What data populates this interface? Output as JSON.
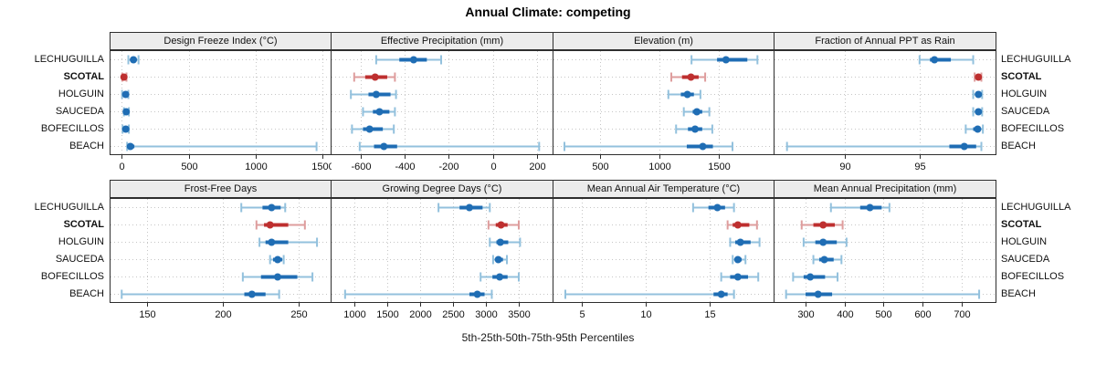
{
  "title": "Annual Climate: competing",
  "caption": "5th-25th-50th-75th-95th Percentiles",
  "sites": [
    {
      "name": "LECHUGUILLA",
      "bold": false,
      "highlight": false
    },
    {
      "name": "SCOTAL",
      "bold": true,
      "highlight": true
    },
    {
      "name": "HOLGUIN",
      "bold": false,
      "highlight": false
    },
    {
      "name": "SAUCEDA",
      "bold": false,
      "highlight": false
    },
    {
      "name": "BOFECILLOS",
      "bold": false,
      "highlight": false
    },
    {
      "name": "BEACH",
      "bold": false,
      "highlight": false
    }
  ],
  "colors": {
    "blue": "#1f6db4",
    "blue_light": "#93c1dd",
    "red": "#be2f2f",
    "red_light": "#de9d9d",
    "grid": "#c6c6c6",
    "border": "#2e2e2e",
    "strip_bg": "#ececec",
    "text": "#111111"
  },
  "chart_data": {
    "type": "dot-interval",
    "percentile_labels": [
      5,
      25,
      50,
      75,
      95
    ],
    "layout": {
      "rows": 2,
      "cols": 4,
      "grid": "dotted",
      "row_order_top_to_bottom": [
        "LECHUGUILLA",
        "SCOTAL",
        "HOLGUIN",
        "SAUCEDA",
        "BOFECILLOS",
        "BEACH"
      ]
    },
    "panels": [
      {
        "title": "Design Freeze Index (°C)",
        "row": 0,
        "col": 0,
        "xlim": [
          -90,
          1560
        ],
        "ticks": [
          0,
          500,
          1000,
          1500
        ],
        "series": [
          {
            "site": "LECHUGUILLA",
            "percentiles": [
              50,
              70,
              88,
              106,
              126
            ]
          },
          {
            "site": "SCOTAL",
            "percentiles": [
              4,
              10,
              17,
              25,
              36
            ]
          },
          {
            "site": "HOLGUIN",
            "percentiles": [
              3,
              18,
              30,
              40,
              50
            ]
          },
          {
            "site": "SAUCEDA",
            "percentiles": [
              17,
              26,
              34,
              44,
              54
            ]
          },
          {
            "site": "BOFECILLOS",
            "percentiles": [
              7,
              20,
              31,
              42,
              54
            ]
          },
          {
            "site": "BEACH",
            "percentiles": [
              41,
              55,
              65,
              95,
              1455
            ]
          }
        ]
      },
      {
        "title": "Effective Precipitation (mm)",
        "row": 0,
        "col": 1,
        "xlim": [
          -737,
          271
        ],
        "ticks": [
          -600,
          -400,
          -200,
          0,
          200
        ],
        "series": [
          {
            "site": "LECHUGUILLA",
            "percentiles": [
              -530,
              -425,
              -360,
              -300,
              -235
            ]
          },
          {
            "site": "SCOTAL",
            "percentiles": [
              -630,
              -580,
              -535,
              -480,
              -445
            ]
          },
          {
            "site": "HOLGUIN",
            "percentiles": [
              -645,
              -565,
              -530,
              -465,
              -440
            ]
          },
          {
            "site": "SAUCEDA",
            "percentiles": [
              -590,
              -545,
              -515,
              -470,
              -445
            ]
          },
          {
            "site": "BOFECILLOS",
            "percentiles": [
              -640,
              -590,
              -560,
              -500,
              -450
            ]
          },
          {
            "site": "BEACH",
            "percentiles": [
              -605,
              -540,
              -495,
              -435,
              210
            ]
          }
        ]
      },
      {
        "title": "Elevation (m)",
        "row": 0,
        "col": 2,
        "xlim": [
          100,
          1961
        ],
        "ticks": [
          500,
          1000,
          1500
        ],
        "series": [
          {
            "site": "LECHUGUILLA",
            "percentiles": [
              1270,
              1485,
              1560,
              1740,
              1825
            ]
          },
          {
            "site": "SCOTAL",
            "percentiles": [
              1100,
              1190,
              1265,
              1330,
              1385
            ]
          },
          {
            "site": "HOLGUIN",
            "percentiles": [
              1075,
              1180,
              1235,
              1290,
              1345
            ]
          },
          {
            "site": "SAUCEDA",
            "percentiles": [
              1205,
              1280,
              1315,
              1360,
              1420
            ]
          },
          {
            "site": "BOFECILLOS",
            "percentiles": [
              1140,
              1240,
              1300,
              1360,
              1445
            ]
          },
          {
            "site": "BEACH",
            "percentiles": [
              200,
              1230,
              1365,
              1450,
              1615
            ]
          }
        ]
      },
      {
        "title": "Fraction of Annual PPT as Rain",
        "row": 0,
        "col": 3,
        "xlim": [
          85.2,
          100.1
        ],
        "ticks": [
          90,
          95
        ],
        "series": [
          {
            "site": "LECHUGUILLA",
            "percentiles": [
              95.0,
              95.7,
              96.0,
              97.1,
              98.6
            ]
          },
          {
            "site": "SCOTAL",
            "percentiles": [
              98.7,
              98.85,
              98.95,
              99.05,
              99.15
            ]
          },
          {
            "site": "HOLGUIN",
            "percentiles": [
              98.6,
              98.8,
              98.95,
              99.05,
              99.2
            ]
          },
          {
            "site": "SAUCEDA",
            "percentiles": [
              98.6,
              98.8,
              98.95,
              99.05,
              99.2
            ]
          },
          {
            "site": "BOFECILLOS",
            "percentiles": [
              98.1,
              98.6,
              98.9,
              99.05,
              99.25
            ]
          },
          {
            "site": "BEACH",
            "percentiles": [
              86.1,
              97.0,
              98.0,
              98.8,
              99.15
            ]
          }
        ]
      },
      {
        "title": "Frost-Free Days",
        "row": 1,
        "col": 0,
        "xlim": [
          125,
          271
        ],
        "ticks": [
          150,
          200,
          250
        ],
        "series": [
          {
            "site": "LECHUGUILLA",
            "percentiles": [
              212,
              226,
              232,
              238,
              241
            ]
          },
          {
            "site": "SCOTAL",
            "percentiles": [
              222,
              227,
              231,
              243,
              254
            ]
          },
          {
            "site": "HOLGUIN",
            "percentiles": [
              224,
              228,
              232,
              243,
              262
            ]
          },
          {
            "site": "SAUCEDA",
            "percentiles": [
              231,
              233,
              236,
              239,
              240
            ]
          },
          {
            "site": "BOFECILLOS",
            "percentiles": [
              213,
              225,
              236,
              249,
              259
            ]
          },
          {
            "site": "BEACH",
            "percentiles": [
              133,
              214,
              219,
              228,
              237
            ]
          }
        ]
      },
      {
        "title": "Growing Degree Days (°C)",
        "row": 1,
        "col": 1,
        "xlim": [
          640,
          4014
        ],
        "ticks": [
          1000,
          1500,
          2000,
          2500,
          3000,
          3500
        ],
        "series": [
          {
            "site": "LECHUGUILLA",
            "percentiles": [
              2280,
              2600,
              2750,
              2950,
              3060
            ]
          },
          {
            "site": "SCOTAL",
            "percentiles": [
              3040,
              3150,
              3230,
              3330,
              3500
            ]
          },
          {
            "site": "HOLGUIN",
            "percentiles": [
              3060,
              3160,
              3220,
              3340,
              3520
            ]
          },
          {
            "site": "SAUCEDA",
            "percentiles": [
              3110,
              3160,
              3190,
              3260,
              3320
            ]
          },
          {
            "site": "BOFECILLOS",
            "percentiles": [
              2920,
              3100,
              3210,
              3330,
              3500
            ]
          },
          {
            "site": "BEACH",
            "percentiles": [
              860,
              2750,
              2870,
              2980,
              3090
            ]
          }
        ]
      },
      {
        "title": "Mean Annual Air Temperature (°C)",
        "row": 1,
        "col": 2,
        "xlim": [
          2.7,
          20
        ],
        "ticks": [
          5,
          10,
          15
        ],
        "series": [
          {
            "site": "LECHUGUILLA",
            "percentiles": [
              13.7,
              14.9,
              15.6,
              16.2,
              16.9
            ]
          },
          {
            "site": "SCOTAL",
            "percentiles": [
              16.4,
              16.8,
              17.2,
              18.1,
              18.7
            ]
          },
          {
            "site": "HOLGUIN",
            "percentiles": [
              16.6,
              17.0,
              17.4,
              18.2,
              18.9
            ]
          },
          {
            "site": "SAUCEDA",
            "percentiles": [
              16.8,
              17.0,
              17.2,
              17.5,
              17.8
            ]
          },
          {
            "site": "BOFECILLOS",
            "percentiles": [
              15.9,
              16.6,
              17.2,
              18.0,
              18.8
            ]
          },
          {
            "site": "BEACH",
            "percentiles": [
              3.7,
              15.3,
              15.9,
              16.4,
              16.9
            ]
          }
        ]
      },
      {
        "title": "Mean Annual Precipitation (mm)",
        "row": 1,
        "col": 3,
        "xlim": [
          218,
          787
        ],
        "ticks": [
          300,
          400,
          500,
          600,
          700
        ],
        "series": [
          {
            "site": "LECHUGUILLA",
            "percentiles": [
              365,
              440,
              465,
              495,
              515
            ]
          },
          {
            "site": "SCOTAL",
            "percentiles": [
              290,
              320,
              345,
              375,
              395
            ]
          },
          {
            "site": "HOLGUIN",
            "percentiles": [
              295,
              325,
              345,
              380,
              405
            ]
          },
          {
            "site": "SAUCEDA",
            "percentiles": [
              320,
              335,
              348,
              372,
              392
            ]
          },
          {
            "site": "BOFECILLOS",
            "percentiles": [
              268,
              295,
              312,
              350,
              382
            ]
          },
          {
            "site": "BEACH",
            "percentiles": [
              250,
              300,
              332,
              368,
              745
            ]
          }
        ]
      }
    ]
  }
}
